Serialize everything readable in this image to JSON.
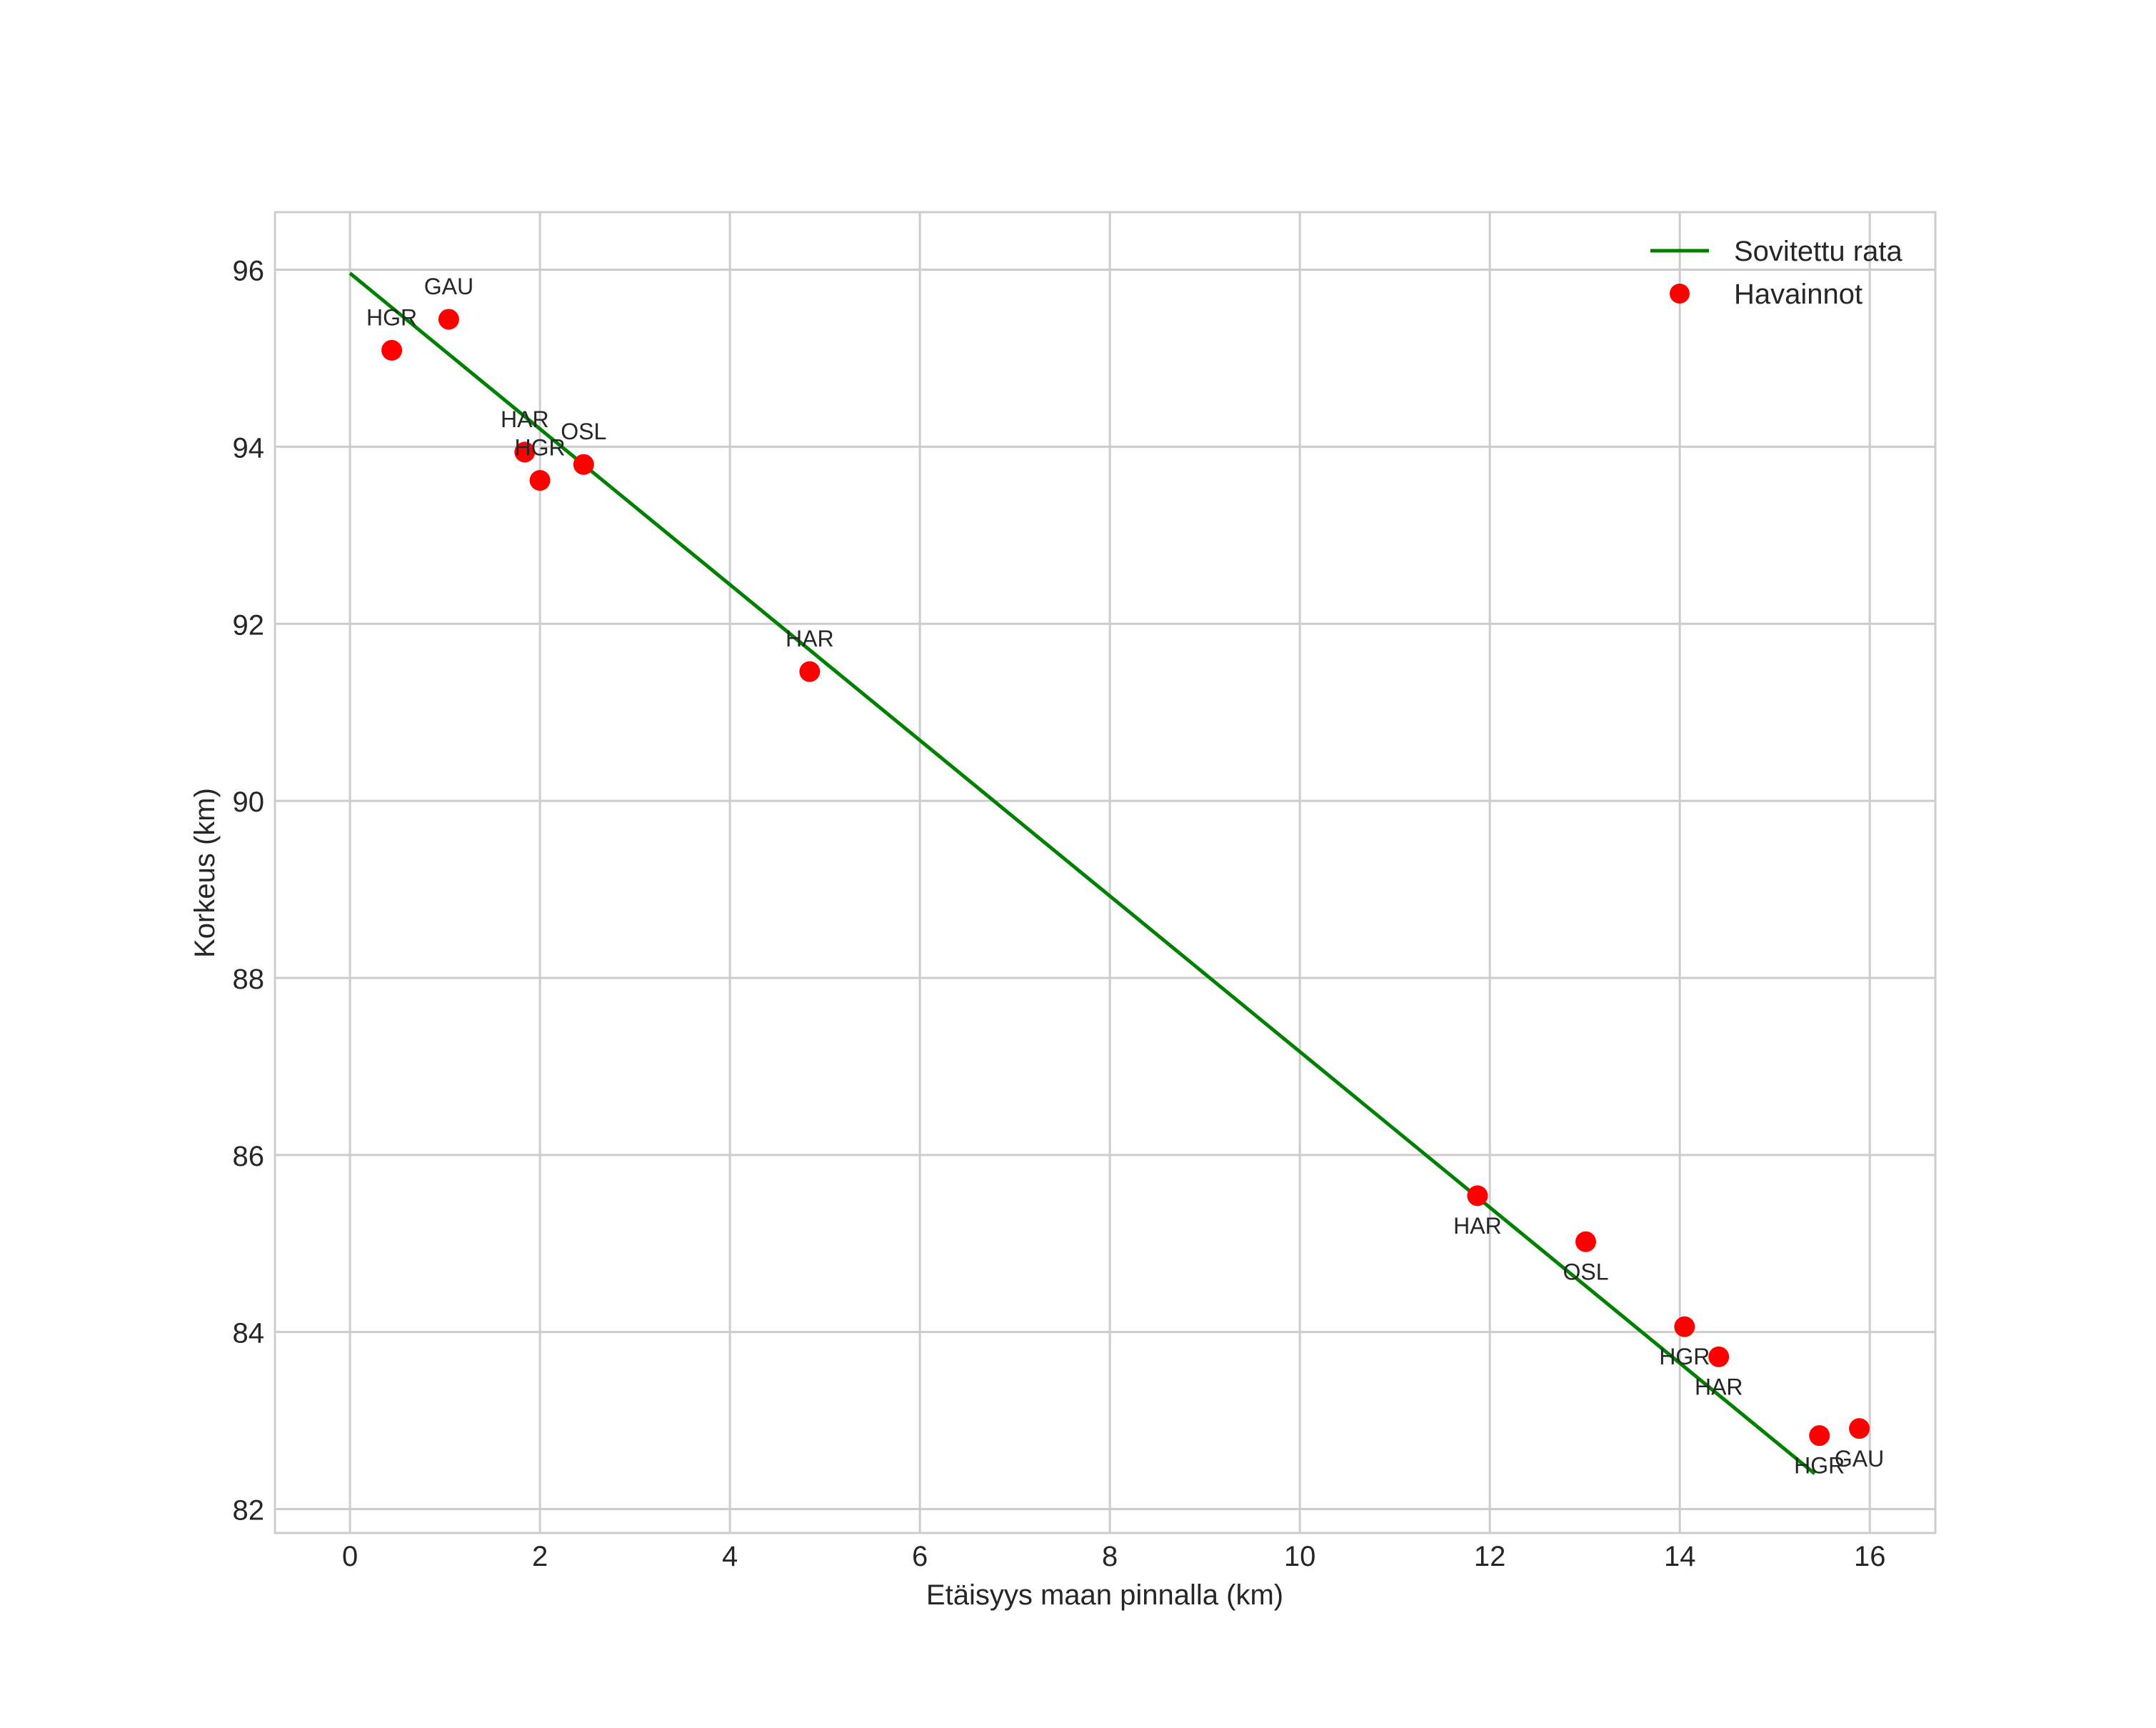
{
  "chart_data": {
    "type": "scatter",
    "title": "",
    "xlabel": "Etäisyys maan pinnalla (km)",
    "ylabel": "Korkeus (km)",
    "xlim": [
      -0.79,
      16.69
    ],
    "ylim": [
      81.73,
      96.65
    ],
    "xticks": [
      0,
      2,
      4,
      6,
      8,
      10,
      12,
      14,
      16
    ],
    "yticks": [
      82,
      84,
      86,
      88,
      90,
      92,
      94,
      96
    ],
    "grid": true,
    "legend_position": "upper right",
    "legend": [
      "Sovitettu rata",
      "Havainnot"
    ],
    "series": [
      {
        "name": "Sovitettu rata",
        "type": "line",
        "color": "#008000",
        "x": [
          0.0,
          15.42
        ],
        "y": [
          95.96,
          82.4
        ]
      },
      {
        "name": "Havainnot",
        "type": "scatter",
        "color": "#ff0000",
        "points": [
          {
            "x": 0.44,
            "y": 95.09,
            "label": "HGR",
            "label_pos": "above"
          },
          {
            "x": 1.04,
            "y": 95.44,
            "label": "GAU",
            "label_pos": "above"
          },
          {
            "x": 1.84,
            "y": 93.94,
            "label": "HAR",
            "label_pos": "above"
          },
          {
            "x": 2.0,
            "y": 93.62,
            "label": "HGR",
            "label_pos": "above"
          },
          {
            "x": 2.46,
            "y": 93.8,
            "label": "OSL",
            "label_pos": "above"
          },
          {
            "x": 4.84,
            "y": 91.46,
            "label": "HAR",
            "label_pos": "above"
          },
          {
            "x": 11.87,
            "y": 85.54,
            "label": "HAR",
            "label_pos": "below"
          },
          {
            "x": 13.01,
            "y": 85.02,
            "label": "OSL",
            "label_pos": "below"
          },
          {
            "x": 14.05,
            "y": 84.06,
            "label": "HGR",
            "label_pos": "below"
          },
          {
            "x": 14.41,
            "y": 83.72,
            "label": "HAR",
            "label_pos": "below"
          },
          {
            "x": 15.47,
            "y": 82.83,
            "label": "HGR",
            "label_pos": "below"
          },
          {
            "x": 15.89,
            "y": 82.91,
            "label": "GAU",
            "label_pos": "below"
          }
        ]
      }
    ]
  },
  "colors": {
    "line": "#008000",
    "points": "#ff0000",
    "grid": "#cccccc",
    "text": "#262626"
  }
}
